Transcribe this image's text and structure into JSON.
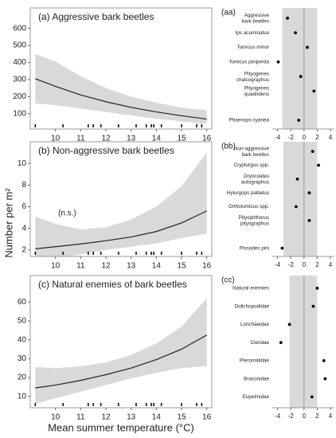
{
  "shared": {
    "y_label": "Number per m²",
    "x_label": "Mean summer temperature (°C)"
  },
  "chart_data": [
    {
      "type": "line",
      "title": "(a) Aggressive bark beetles",
      "x": [
        9.2,
        10,
        11,
        12,
        13,
        14,
        15,
        16
      ],
      "values": [
        305,
        260,
        210,
        170,
        137,
        110,
        88,
        68
      ],
      "band_lower": [
        160,
        150,
        130,
        110,
        90,
        70,
        55,
        40
      ],
      "band_upper": [
        450,
        405,
        320,
        250,
        200,
        165,
        135,
        120
      ],
      "rug": [
        9.2,
        10.3,
        11.3,
        11.5,
        11.8,
        12.5,
        13.2,
        13.6,
        13.8,
        13.9,
        14.2,
        15.0,
        15.6,
        15.8
      ],
      "xlim": [
        9,
        16.2
      ],
      "ylim": [
        10,
        720
      ],
      "xticks": [
        10,
        11,
        12,
        13,
        14,
        15,
        16
      ],
      "yticks": [
        100,
        200,
        300,
        400,
        500,
        600
      ],
      "color": "#222222",
      "band_color": "#d9d9d9"
    },
    {
      "type": "line",
      "title": "(b) Non-aggressive bark beetles",
      "annotation": "(n.s.)",
      "x": [
        9.2,
        10,
        11,
        12,
        13,
        14,
        15,
        16
      ],
      "values": [
        2.1,
        2.3,
        2.55,
        2.85,
        3.2,
        3.7,
        4.5,
        5.6
      ],
      "band_lower": [
        0.9,
        1.2,
        1.6,
        2.0,
        2.3,
        2.6,
        3.1,
        3.5
      ],
      "band_upper": [
        5.1,
        4.4,
        3.9,
        4.1,
        4.8,
        6.0,
        7.9,
        11.0
      ],
      "rug": [
        9.2,
        10.3,
        11.3,
        11.5,
        11.8,
        12.5,
        13.2,
        13.6,
        13.8,
        13.9,
        14.2,
        15.0,
        15.6,
        15.8
      ],
      "xlim": [
        9,
        16.2
      ],
      "ylim": [
        1.4,
        12
      ],
      "xticks": [
        10,
        11,
        12,
        13,
        14,
        15,
        16
      ],
      "yticks": [
        2,
        4,
        6,
        8,
        10
      ],
      "color": "#222222",
      "band_color": "#d9d9d9"
    },
    {
      "type": "line",
      "title": "(c) Natural enemies of bark beetles",
      "x": [
        9.2,
        10,
        11,
        12,
        13,
        14,
        15,
        16
      ],
      "values": [
        14.5,
        16,
        18.5,
        21.5,
        25,
        29.5,
        35,
        42.5
      ],
      "band_lower": [
        6,
        9,
        12.5,
        16,
        19.5,
        22.5,
        25,
        26
      ],
      "band_upper": [
        25.5,
        25,
        26,
        28,
        32,
        38,
        47,
        62
      ],
      "rug": [
        9.2,
        10.3,
        11.3,
        11.5,
        11.8,
        12.5,
        13.2,
        13.6,
        13.8,
        13.9,
        14.2,
        15.0,
        15.6,
        15.8
      ],
      "xlim": [
        9,
        16.2
      ],
      "ylim": [
        4,
        74
      ],
      "xticks": [
        10,
        11,
        12,
        13,
        14,
        15,
        16
      ],
      "yticks": [
        10,
        20,
        30,
        40,
        50,
        60
      ],
      "color": "#222222",
      "band_color": "#d9d9d9"
    },
    {
      "type": "dot",
      "title": "(aa)",
      "categories": [
        "Aggressive bark beetles",
        "Ips acuminatus",
        "Tomicus minor",
        "Tomicus piniperda",
        "Pityogenes chalcographus",
        "Pityogenes quadridens",
        null,
        "Phaenops cyanea"
      ],
      "values": [
        -2.5,
        -1.3,
        0.5,
        -3.9,
        -0.5,
        1.5,
        null,
        -0.8
      ],
      "band": [
        -3.3,
        2.0
      ],
      "xlim": [
        -4.8,
        4.6
      ],
      "xticks": [
        -4,
        -2,
        0,
        2,
        4
      ],
      "reference": 0,
      "color": "#000000",
      "band_color": "#d9d9d9"
    },
    {
      "type": "dot",
      "title": "(bb)",
      "categories": [
        "Non-aggressive bark beetles",
        "Crypturgus spp.",
        "Dryocoetes autographus",
        "Hylurgops palliatus",
        "Orthotomicus spp.",
        "Pityophthorus pityographus",
        null,
        "Pissodes pini"
      ],
      "values": [
        1.3,
        2.2,
        -1.0,
        0.8,
        -1.2,
        0.8,
        null,
        -3.3
      ],
      "band": [
        -3.1,
        2.0
      ],
      "xlim": [
        -4.8,
        4.6
      ],
      "xticks": [
        -4,
        -2,
        0,
        2,
        4
      ],
      "reference": 0,
      "color": "#000000",
      "band_color": "#d9d9d9"
    },
    {
      "type": "dot",
      "title": "(cc)",
      "categories": [
        "Natural enemies",
        "Dolichopodidae",
        "Lonchaeidae",
        "Cleridae",
        "Pteromalidae",
        "Braconidae",
        "Eupelmidae"
      ],
      "values": [
        2.0,
        1.4,
        -2.2,
        -3.5,
        3.0,
        3.2,
        1.2
      ],
      "band": [
        -2.2,
        2.0
      ],
      "xlim": [
        -4.8,
        4.6
      ],
      "xticks": [
        -4,
        -2,
        0,
        2,
        4
      ],
      "reference": 0,
      "color": "#000000",
      "band_color": "#d9d9d9"
    }
  ]
}
